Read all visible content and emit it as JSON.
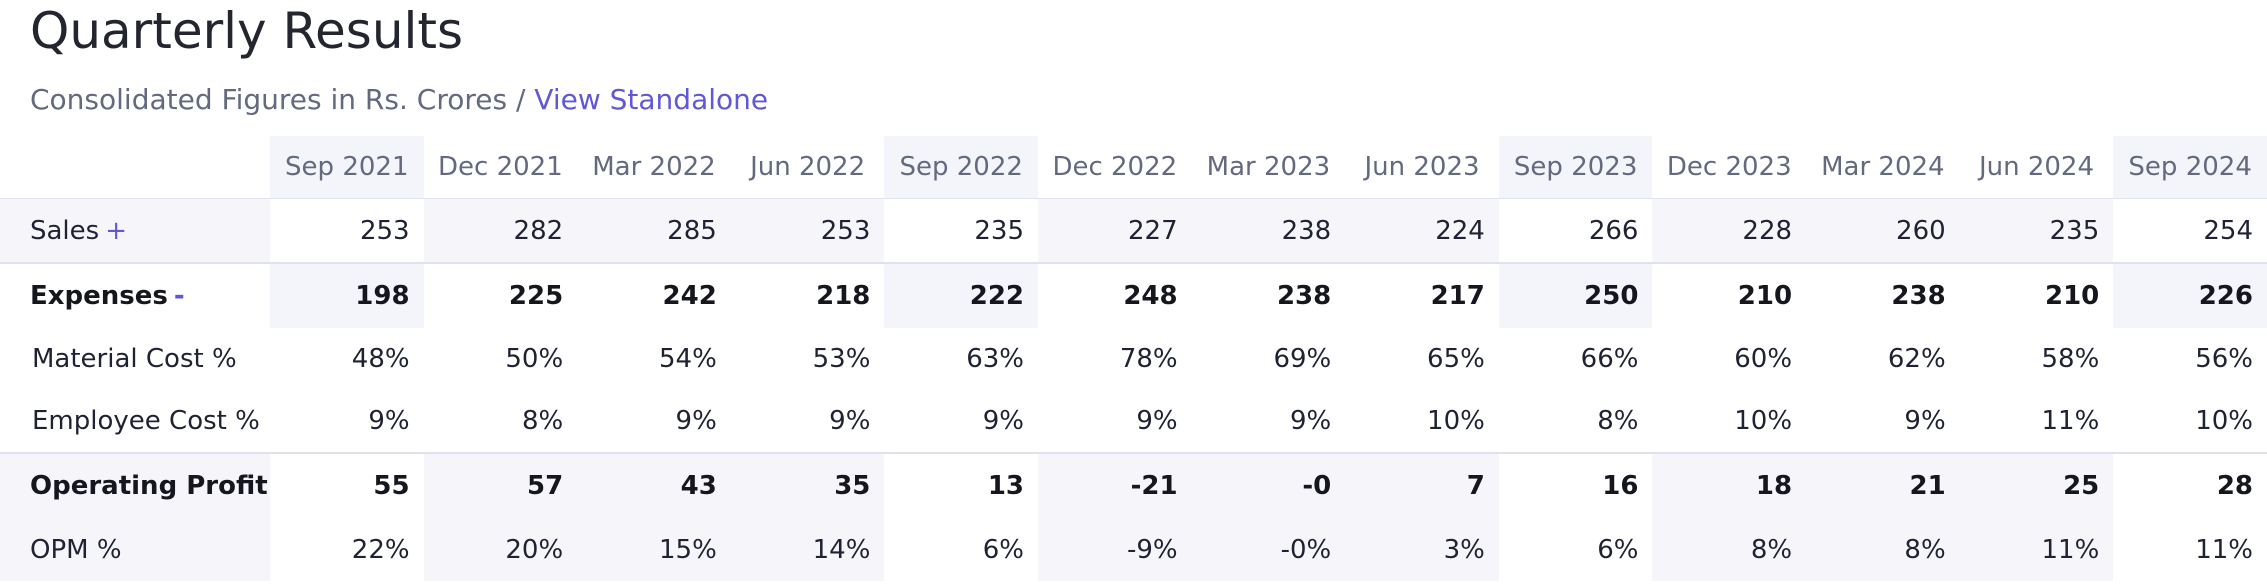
{
  "title": "Quarterly Results",
  "subtitle": {
    "text": "Consolidated Figures in Rs. Crores / ",
    "link": "View Standalone"
  },
  "quarters": [
    "Sep 2021",
    "Dec 2021",
    "Mar 2022",
    "Jun 2022",
    "Sep 2022",
    "Dec 2022",
    "Mar 2023",
    "Jun 2023",
    "Sep 2023",
    "Dec 2023",
    "Mar 2024",
    "Jun 2024",
    "Sep 2024"
  ],
  "rows": [
    {
      "label": "Sales",
      "toggle": "+",
      "values": [
        "253",
        "282",
        "285",
        "253",
        "235",
        "227",
        "238",
        "224",
        "266",
        "228",
        "260",
        "235",
        "254"
      ]
    },
    {
      "label": "Expenses",
      "toggle": "-",
      "values": [
        "198",
        "225",
        "242",
        "218",
        "222",
        "248",
        "238",
        "217",
        "250",
        "210",
        "238",
        "210",
        "226"
      ]
    },
    {
      "label": "Material Cost %",
      "toggle": "",
      "values": [
        "48%",
        "50%",
        "54%",
        "53%",
        "63%",
        "78%",
        "69%",
        "65%",
        "66%",
        "60%",
        "62%",
        "58%",
        "56%"
      ]
    },
    {
      "label": "Employee Cost %",
      "toggle": "",
      "values": [
        "9%",
        "8%",
        "9%",
        "9%",
        "9%",
        "9%",
        "9%",
        "10%",
        "8%",
        "10%",
        "9%",
        "11%",
        "10%"
      ]
    },
    {
      "label": "Operating Profit",
      "toggle": "",
      "values": [
        "55",
        "57",
        "43",
        "35",
        "13",
        "-21",
        "-0",
        "7",
        "16",
        "18",
        "21",
        "25",
        "28"
      ]
    },
    {
      "label": "OPM %",
      "toggle": "",
      "values": [
        "22%",
        "20%",
        "15%",
        "14%",
        "6%",
        "-9%",
        "-0%",
        "3%",
        "6%",
        "8%",
        "8%",
        "11%",
        "11%"
      ]
    }
  ],
  "colors": {
    "link": "#6058d6",
    "muted": "#636a7e",
    "highlight": "#f4f5fa"
  }
}
